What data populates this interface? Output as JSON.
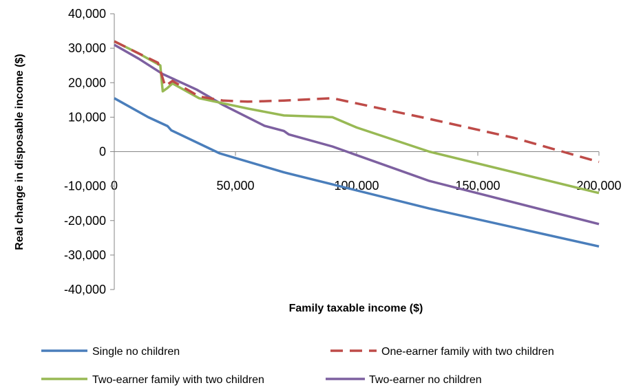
{
  "chart_data": {
    "type": "line",
    "title": "",
    "xlabel": "Family taxable income ($)",
    "ylabel": "Real change  in disposable  income  ($)",
    "xlim": [
      0,
      200000
    ],
    "ylim": [
      -40000,
      40000
    ],
    "x_ticks": [
      0,
      50000,
      100000,
      150000,
      200000
    ],
    "x_tick_labels": [
      "0",
      "50,000",
      "100,000",
      "150,000",
      "200,000"
    ],
    "y_ticks": [
      40000,
      30000,
      20000,
      10000,
      0,
      -10000,
      -20000,
      -30000,
      -40000
    ],
    "y_tick_labels": [
      "40,000",
      "30,000",
      "20,000",
      "10,000",
      "0",
      "-10,000",
      "-20,000",
      "-30,000",
      "-40,000"
    ],
    "grid": false,
    "legend_position": "bottom",
    "series": [
      {
        "name": "Single no children",
        "color": "#4a7ebb",
        "style": "solid",
        "x": [
          0,
          14000,
          22000,
          23500,
          43500,
          70000,
          90000,
          130000,
          200000
        ],
        "y": [
          15500,
          10000,
          7400,
          6200,
          -500,
          -6000,
          -9500,
          -16500,
          -27500
        ]
      },
      {
        "name": "One-earner family with two children",
        "color": "#be4b48",
        "style": "dashed",
        "x": [
          0,
          10000,
          18000,
          21000,
          24000,
          35000,
          45000,
          55000,
          70000,
          90000,
          130000,
          165000,
          200000
        ],
        "y": [
          32000,
          28500,
          25800,
          19000,
          20500,
          16000,
          14800,
          14500,
          14800,
          15500,
          9500,
          4000,
          -3000
        ]
      },
      {
        "name": "Two-earner family with two children",
        "color": "#98b954",
        "style": "solid",
        "x": [
          0,
          10000,
          19000,
          19500,
          20000,
          22000,
          24000,
          35000,
          45000,
          55000,
          70000,
          90000,
          100000,
          130000,
          200000
        ],
        "y": [
          32000,
          28500,
          25000,
          21000,
          17500,
          18500,
          19800,
          15500,
          14000,
          12500,
          10500,
          10000,
          7000,
          0,
          -12000
        ]
      },
      {
        "name": "Two-earner no children",
        "color": "#7d60a0",
        "style": "solid",
        "x": [
          0,
          10000,
          20000,
          34000,
          45000,
          62000,
          70000,
          72000,
          90000,
          130000,
          200000
        ],
        "y": [
          31000,
          27000,
          22500,
          18000,
          13500,
          7500,
          6000,
          5000,
          1500,
          -8500,
          -21000
        ]
      }
    ]
  }
}
